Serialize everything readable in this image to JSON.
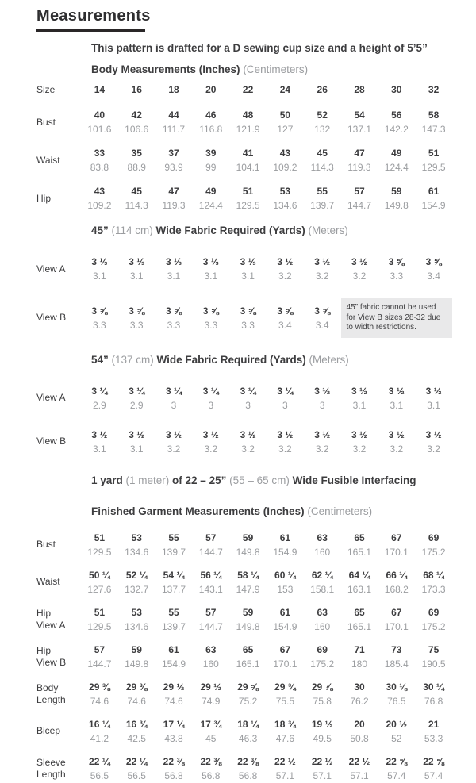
{
  "page": {
    "title": "Measurements",
    "subtitle": "This pattern is drafted for a D sewing cup size and a height of 5’5”"
  },
  "colors": {
    "dark_text": "#3d3d3f",
    "muted_text": "#9b9da0",
    "note_bg": "#e9e9ea",
    "rule": "#2a2728"
  },
  "body_measurements": {
    "heading": [
      {
        "t": "Body Measurements (Inches) "
      },
      {
        "t": "(Centimeters)",
        "muted": true
      }
    ],
    "rows": [
      {
        "label": [
          "Size"
        ],
        "top": [
          "14",
          "16",
          "18",
          "20",
          "22",
          "24",
          "26",
          "28",
          "30",
          "32"
        ]
      },
      {
        "label": [
          "Bust"
        ],
        "top": [
          "40",
          "42",
          "44",
          "46",
          "48",
          "50",
          "52",
          "54",
          "56",
          "58"
        ],
        "bottom": [
          "101.6",
          "106.6",
          "111.7",
          "116.8",
          "121.9",
          "127",
          "132",
          "137.1",
          "142.2",
          "147.3"
        ]
      },
      {
        "label": [
          "Waist"
        ],
        "top": [
          "33",
          "35",
          "37",
          "39",
          "41",
          "43",
          "45",
          "47",
          "49",
          "51"
        ],
        "bottom": [
          "83.8",
          "88.9",
          "93.9",
          "99",
          "104.1",
          "109.2",
          "114.3",
          "119.3",
          "124.4",
          "129.5"
        ]
      },
      {
        "label": [
          "Hip"
        ],
        "top": [
          "43",
          "45",
          "47",
          "49",
          "51",
          "53",
          "55",
          "57",
          "59",
          "61"
        ],
        "bottom": [
          "109.2",
          "114.3",
          "119.3",
          "124.4",
          "129.5",
          "134.6",
          "139.7",
          "144.7",
          "149.8",
          "154.9"
        ]
      }
    ]
  },
  "fabric_45": {
    "heading": [
      {
        "t": "45” "
      },
      {
        "t": "(114 cm)",
        "muted": true
      },
      {
        "t": " Wide Fabric Required (Yards) "
      },
      {
        "t": "(Meters)",
        "muted": true
      }
    ],
    "rows": [
      {
        "label": [
          "View A"
        ],
        "top": [
          "3 ⅓",
          "3 ⅓",
          "3 ⅓",
          "3 ⅓",
          "3 ⅓",
          "3 ½",
          "3 ½",
          "3 ½",
          "3 ⅝",
          "3 ⅝"
        ],
        "bottom": [
          "3.1",
          "3.1",
          "3.1",
          "3.1",
          "3.1",
          "3.2",
          "3.2",
          "3.2",
          "3.3",
          "3.4"
        ]
      },
      {
        "label": [
          "View B"
        ],
        "top": [
          "3 ⅝",
          "3 ⅝",
          "3 ⅝",
          "3 ⅝",
          "3 ⅝",
          "3 ⅝",
          "3 ⅝"
        ],
        "bottom": [
          "3.3",
          "3.3",
          "3.3",
          "3.3",
          "3.3",
          "3.4",
          "3.4"
        ],
        "note": "45” fabric cannot be used for View B sizes 28-32 due to width restrictions."
      }
    ]
  },
  "fabric_54": {
    "heading": [
      {
        "t": "54” "
      },
      {
        "t": "(137 cm)",
        "muted": true
      },
      {
        "t": " Wide Fabric Required (Yards) "
      },
      {
        "t": "(Meters)",
        "muted": true
      }
    ],
    "rows": [
      {
        "label": [
          "View A"
        ],
        "top": [
          "3 ¼",
          "3 ¼",
          "3 ¼",
          "3 ¼",
          "3 ¼",
          "3 ¼",
          "3 ½",
          "3 ½",
          "3 ½",
          "3 ½"
        ],
        "bottom": [
          "2.9",
          "2.9",
          "3",
          "3",
          "3",
          "3",
          "3",
          "3.1",
          "3.1",
          "3.1"
        ]
      },
      {
        "label": [
          "View B"
        ],
        "top": [
          "3 ½",
          "3 ½",
          "3 ½",
          "3 ½",
          "3 ½",
          "3 ½",
          "3 ½",
          "3 ½",
          "3 ½",
          "3 ½"
        ],
        "bottom": [
          "3.1",
          "3.1",
          "3.2",
          "3.2",
          "3.2",
          "3.2",
          "3.2",
          "3.2",
          "3.2",
          "3.2"
        ]
      }
    ]
  },
  "interfacing": {
    "heading": [
      {
        "t": "1 yard "
      },
      {
        "t": "(1 meter)",
        "muted": true
      },
      {
        "t": " of 22 – 25” "
      },
      {
        "t": "(55 – 65 cm)",
        "muted": true
      },
      {
        "t": " Wide Fusible Interfacing"
      }
    ]
  },
  "finished_garment": {
    "heading": [
      {
        "t": "Finished Garment Measurements (Inches) "
      },
      {
        "t": "(Centimeters)",
        "muted": true
      }
    ],
    "rows": [
      {
        "label": [
          "Bust"
        ],
        "top": [
          "51",
          "53",
          "55",
          "57",
          "59",
          "61",
          "63",
          "65",
          "67",
          "69"
        ],
        "bottom": [
          "129.5",
          "134.6",
          "139.7",
          "144.7",
          "149.8",
          "154.9",
          "160",
          "165.1",
          "170.1",
          "175.2"
        ]
      },
      {
        "label": [
          "Waist"
        ],
        "top": [
          "50 ¼",
          "52 ¼",
          "54 ¼",
          "56 ¼",
          "58 ¼",
          "60 ¼",
          "62 ¼",
          "64 ¼",
          "66 ¼",
          "68 ¼"
        ],
        "bottom": [
          "127.6",
          "132.7",
          "137.7",
          "143.1",
          "147.9",
          "153",
          "158.1",
          "163.1",
          "168.2",
          "173.3"
        ]
      },
      {
        "label": [
          "Hip",
          "View A"
        ],
        "top": [
          "51",
          "53",
          "55",
          "57",
          "59",
          "61",
          "63",
          "65",
          "67",
          "69"
        ],
        "bottom": [
          "129.5",
          "134.6",
          "139.7",
          "144.7",
          "149.8",
          "154.9",
          "160",
          "165.1",
          "170.1",
          "175.2"
        ]
      },
      {
        "label": [
          "Hip",
          "View B"
        ],
        "top": [
          "57",
          "59",
          "61",
          "63",
          "65",
          "67",
          "69",
          "71",
          "73",
          "75"
        ],
        "bottom": [
          "144.7",
          "149.8",
          "154.9",
          "160",
          "165.1",
          "170.1",
          "175.2",
          "180",
          "185.4",
          "190.5"
        ]
      },
      {
        "label": [
          "Body",
          "Length"
        ],
        "top": [
          "29 ⅜",
          "29 ⅜",
          "29 ½",
          "29 ½",
          "29 ⅝",
          "29 ¾",
          "29 ⅞",
          "30",
          "30 ⅛",
          "30 ¼"
        ],
        "bottom": [
          "74.6",
          "74.6",
          "74.6",
          "74.9",
          "75.2",
          "75.5",
          "75.8",
          "76.2",
          "76.5",
          "76.8"
        ]
      },
      {
        "label": [
          "Bicep"
        ],
        "top": [
          "16 ¼",
          "16 ¾",
          "17 ¼",
          "17 ¾",
          "18 ¼",
          "18 ¾",
          "19 ½",
          "20",
          "20 ½",
          "21"
        ],
        "bottom": [
          "41.2",
          "42.5",
          "43.8",
          "45",
          "46.3",
          "47.6",
          "49.5",
          "50.8",
          "52",
          "53.3"
        ]
      },
      {
        "label": [
          "Sleeve",
          "Length"
        ],
        "top": [
          "22 ¼",
          "22 ¼",
          "22 ⅜",
          "22 ⅜",
          "22 ⅜",
          "22 ½",
          "22 ½",
          "22 ½",
          "22 ⅝",
          "22 ⅝"
        ],
        "bottom": [
          "56.5",
          "56.5",
          "56.8",
          "56.8",
          "56.8",
          "57.1",
          "57.1",
          "57.1",
          "57.4",
          "57.4"
        ]
      }
    ]
  }
}
